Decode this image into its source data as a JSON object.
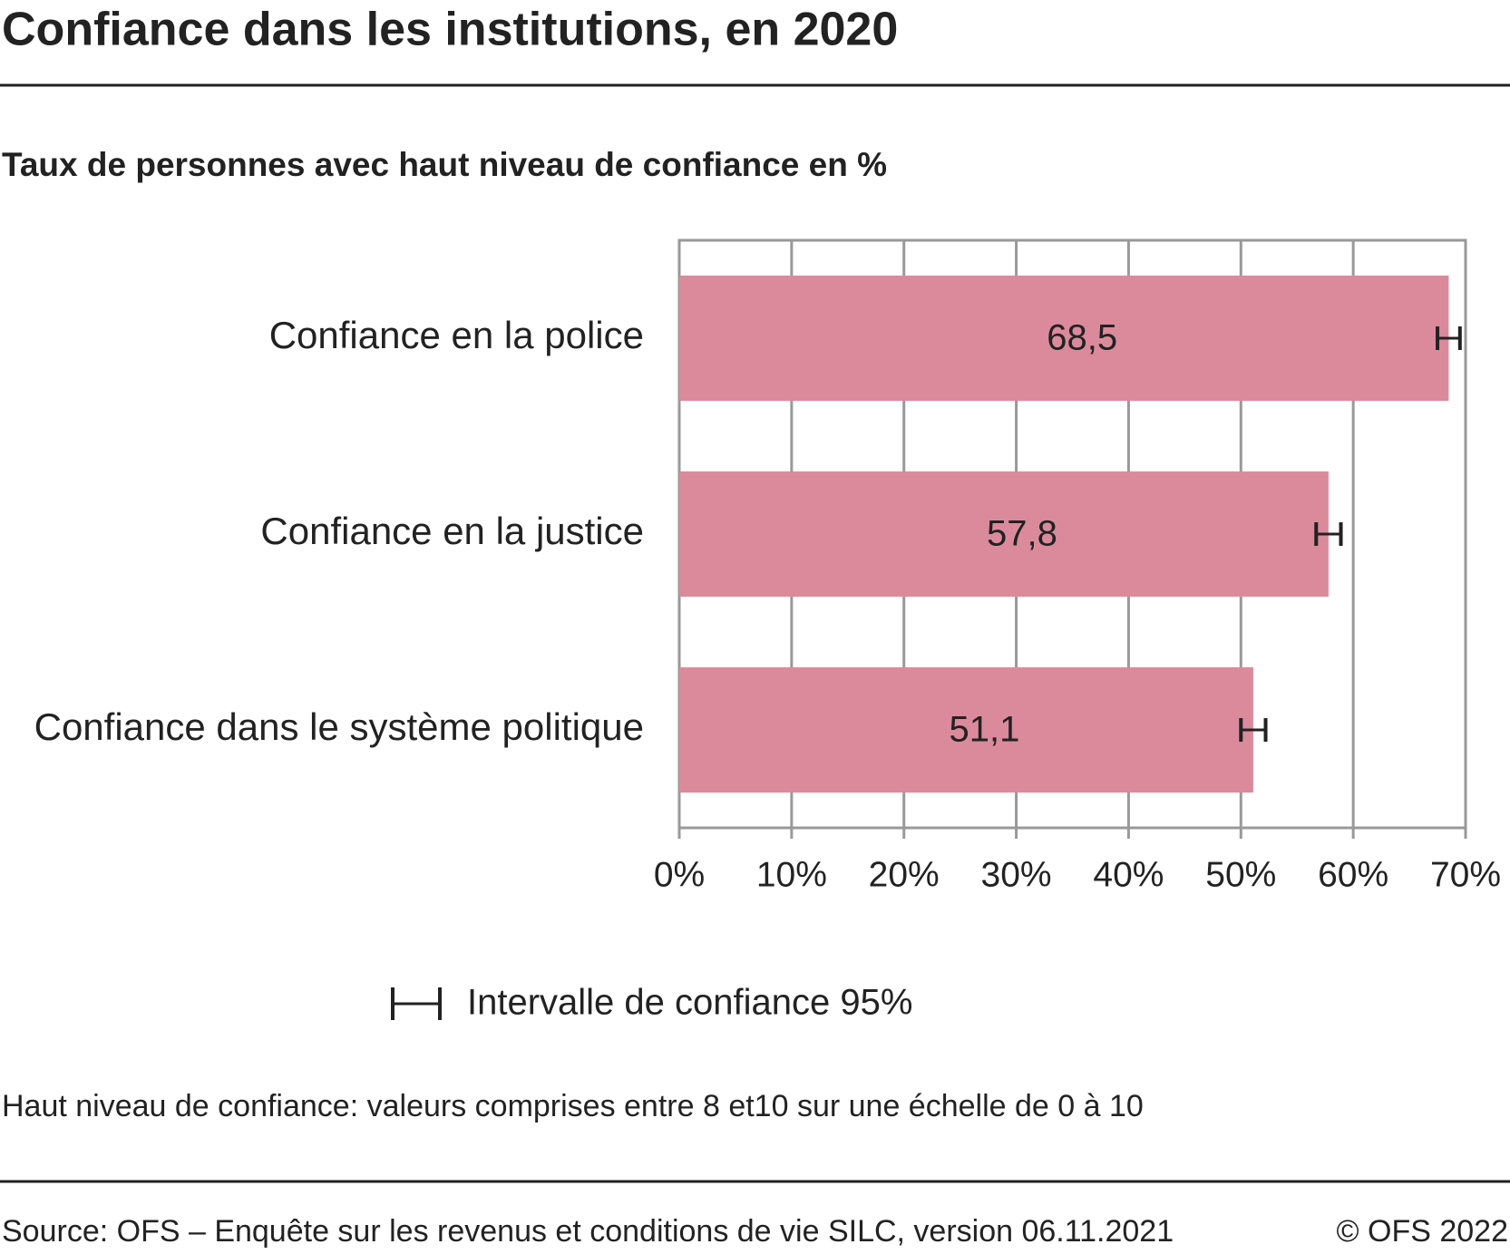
{
  "chart_data": {
    "type": "bar",
    "orientation": "horizontal",
    "title": "Confiance dans les institutions, en 2020",
    "subtitle": "Taux de personnes avec haut niveau de confiance en %",
    "categories": [
      "Confiance en la police",
      "Confiance en la justice",
      "Confiance dans le système politique"
    ],
    "values": [
      68.5,
      57.8,
      51.1
    ],
    "value_labels": [
      "68,5",
      "57,8",
      "51,1"
    ],
    "errors": [
      1.0,
      1.1,
      1.1
    ],
    "error_bar_label": "Intervalle de confiance 95%",
    "color": "#db8a9c",
    "xlim": [
      0,
      70
    ],
    "xticks": [
      {
        "value": 0,
        "label": "0%"
      },
      {
        "value": 10,
        "label": "10%"
      },
      {
        "value": 20,
        "label": "20%"
      },
      {
        "value": 30,
        "label": "30%"
      },
      {
        "value": 40,
        "label": "40%"
      },
      {
        "value": 50,
        "label": "50%"
      },
      {
        "value": 60,
        "label": "60%"
      },
      {
        "value": 70,
        "label": "70%"
      }
    ],
    "grid": true,
    "note": "Haut niveau de confiance: valeurs comprises entre 8 et10 sur une échelle de 0 à 10",
    "source": "Source: OFS – Enquête sur les revenus et conditions de vie SILC, version 06.11.2021",
    "copyright": "© OFS 2022"
  }
}
